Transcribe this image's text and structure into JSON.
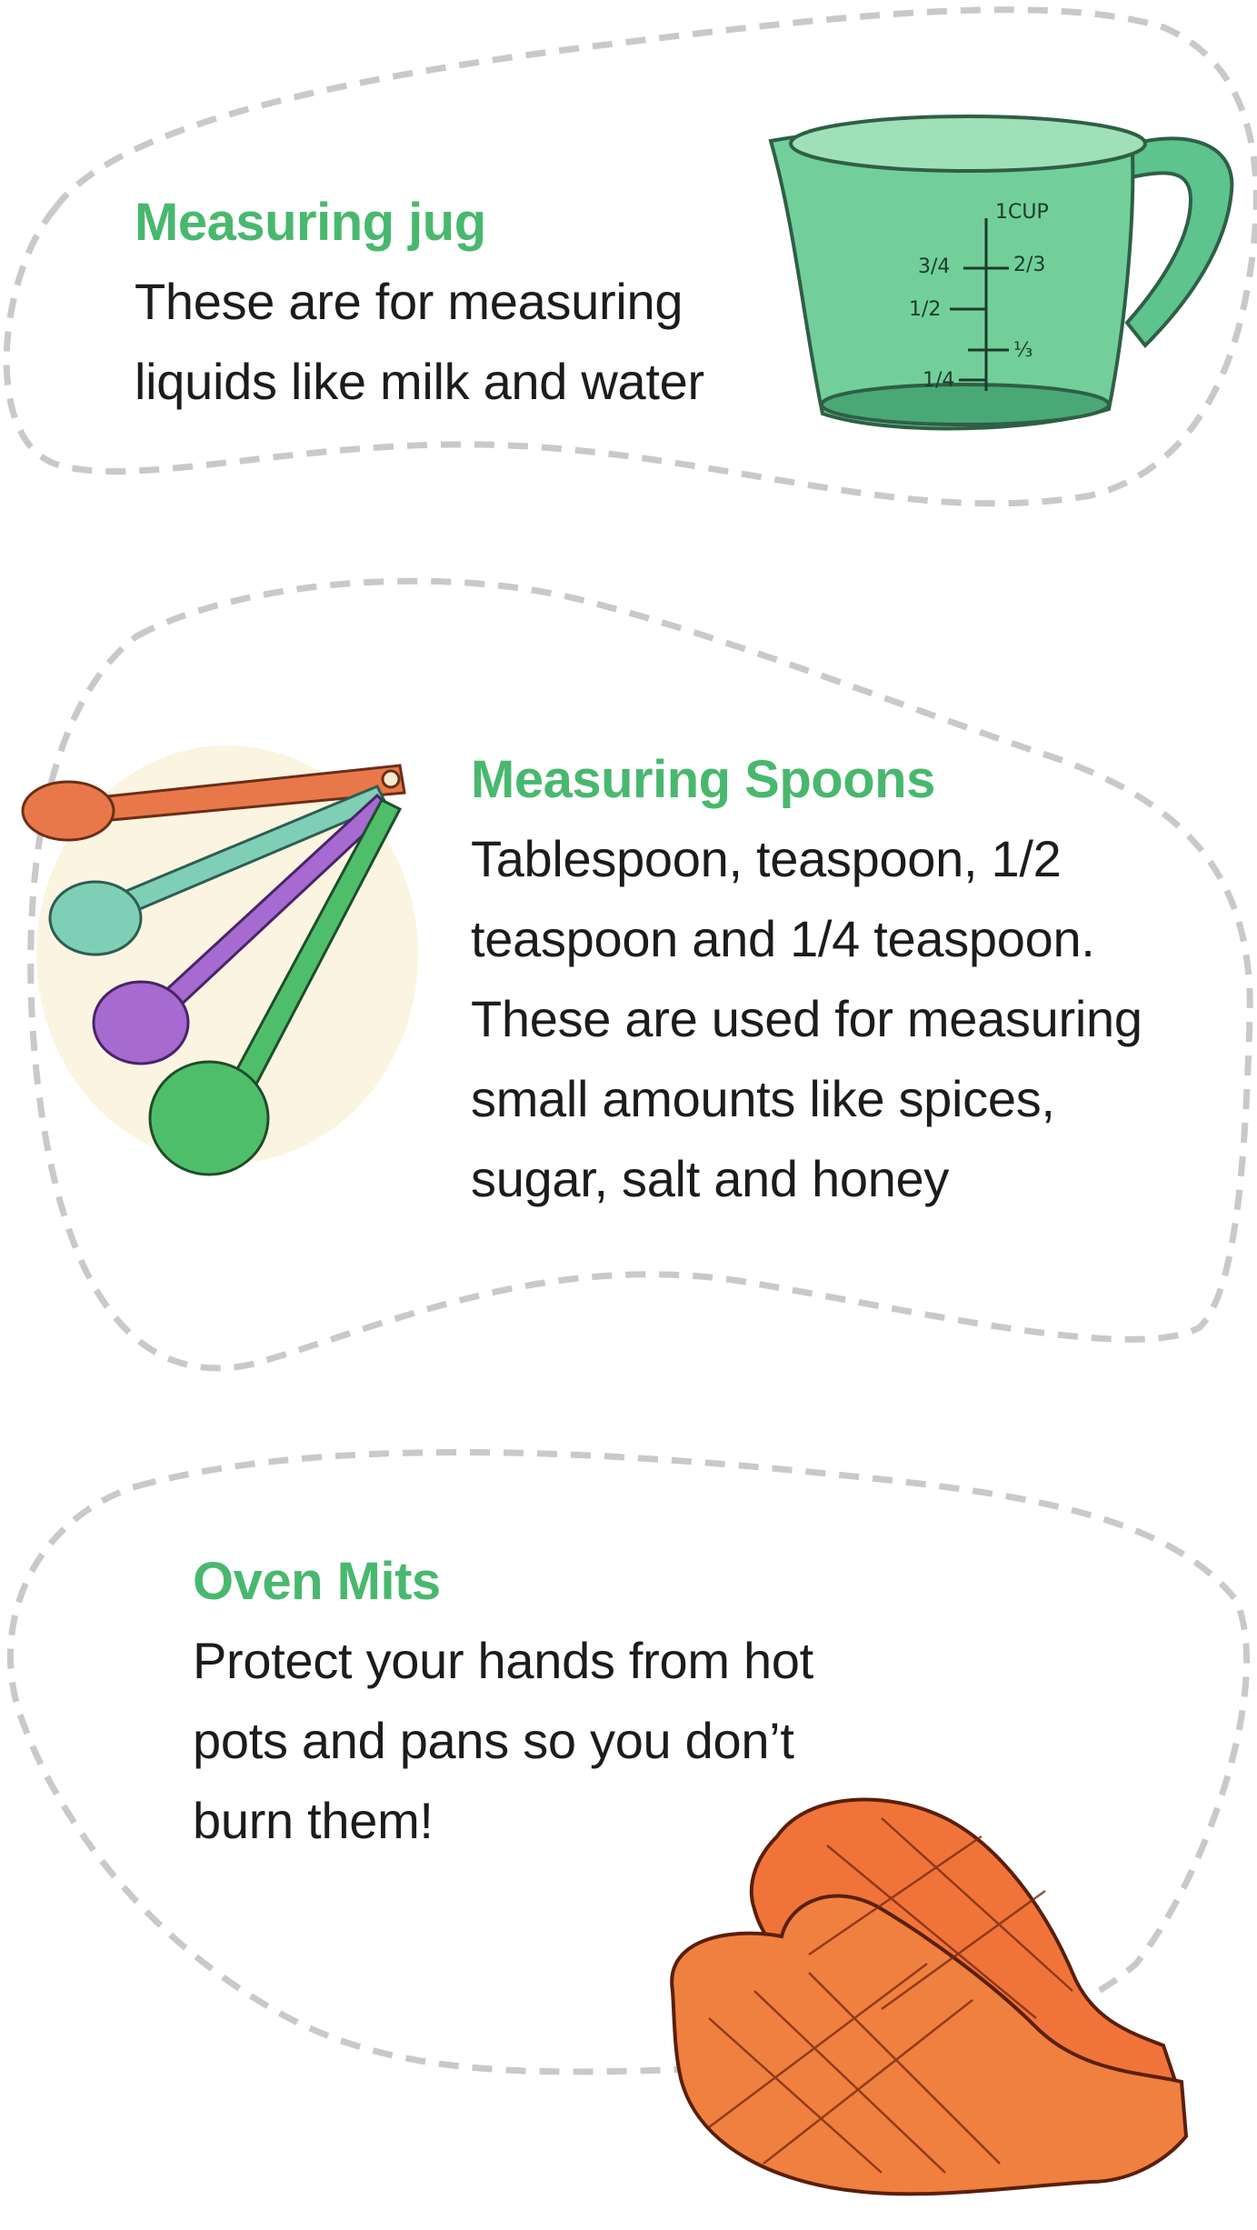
{
  "items": [
    {
      "title": "Measuring jug",
      "lines": [
        "These are for measuring",
        "liquids like milk and water"
      ],
      "icon": "measuring-jug-icon",
      "jug_marks": {
        "cup": "1CUP",
        "two_thirds": "2/3",
        "three_quarters": "3/4",
        "half": "1/2",
        "third": "⅓",
        "quarter": "1/4"
      }
    },
    {
      "title": "Measuring Spoons",
      "lines": [
        "Tablespoon, teaspoon, 1/2",
        "teaspoon and 1/4 teaspoon.",
        "These are used for measuring",
        "small amounts like spices,",
        "sugar, salt and honey"
      ],
      "icon": "measuring-spoons-icon"
    },
    {
      "title": "Oven Mits",
      "lines": [
        "Protect your hands from hot",
        "pots and pans so you don’t",
        "burn them!"
      ],
      "icon": "oven-mitts-icon"
    }
  ],
  "colors": {
    "title_green": "#49b86f",
    "body_text": "#1c1c1c",
    "dash_outline": "#c9c9c9",
    "jug_green": "#5cc48c",
    "spoon_orange": "#e8784a",
    "spoon_teal": "#7fcfb6",
    "spoon_purple": "#a66ad0",
    "spoon_green": "#4fbe6a",
    "mitt_orange": "#f0743a"
  }
}
